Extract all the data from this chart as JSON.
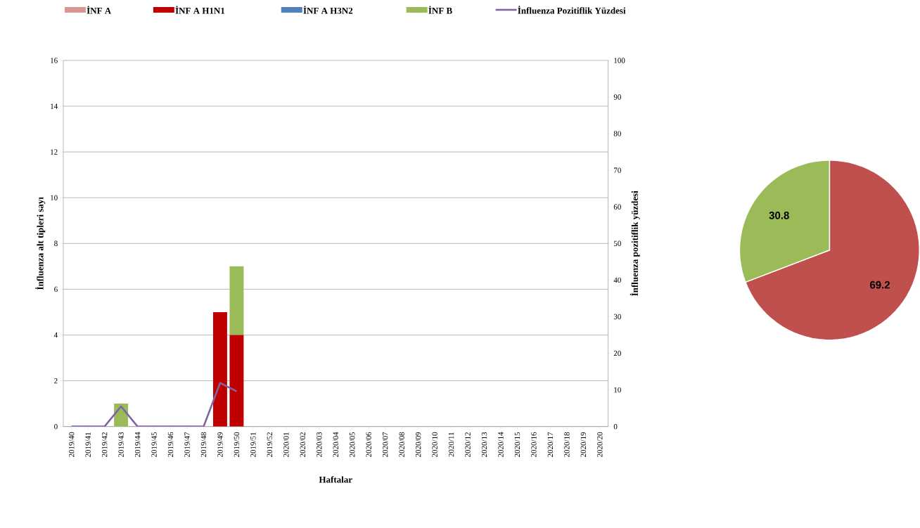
{
  "chart_data": [
    {
      "type": "bar",
      "stacked": true,
      "xlabel": "Haftalar",
      "ylabel": "İnfluenza alt tipleri sayı",
      "y2label": "İnfluenza pozitiflik yüzdesi",
      "legend": "top",
      "grid": "y",
      "categories": [
        "2019/40",
        "2019/41",
        "2019/42",
        "2019/43",
        "2019/44",
        "2019/45",
        "2019/46",
        "2019/47",
        "2019/48",
        "2019/49",
        "2019/50",
        "2019/51",
        "2019/52",
        "2020/01",
        "2020/02",
        "2020/03",
        "2020/04",
        "2020/05",
        "2020/06",
        "2020/07",
        "2020/08",
        "2020/09",
        "2020/10",
        "2020/11",
        "2020/12",
        "2020/13",
        "2020/14",
        "2020/15",
        "2020/16",
        "2020/17",
        "2020/18",
        "2020/19",
        "2020/20"
      ],
      "ylim": [
        0,
        16
      ],
      "yticks": [
        0,
        2,
        4,
        6,
        8,
        10,
        12,
        14,
        16
      ],
      "y2lim": [
        0,
        100
      ],
      "y2ticks": [
        0,
        10,
        20,
        30,
        40,
        50,
        60,
        70,
        80,
        90,
        100
      ],
      "series": [
        {
          "name": "İNF A",
          "color": "#d99694",
          "values": [
            0,
            0,
            0,
            0,
            0,
            0,
            0,
            0,
            0,
            0,
            0,
            0,
            0,
            0,
            0,
            0,
            0,
            0,
            0,
            0,
            0,
            0,
            0,
            0,
            0,
            0,
            0,
            0,
            0,
            0,
            0,
            0,
            0
          ]
        },
        {
          "name": "İNF A H1N1",
          "color": "#c00000",
          "values": [
            0,
            0,
            0,
            0,
            0,
            0,
            0,
            0,
            0,
            5,
            4,
            0,
            0,
            0,
            0,
            0,
            0,
            0,
            0,
            0,
            0,
            0,
            0,
            0,
            0,
            0,
            0,
            0,
            0,
            0,
            0,
            0,
            0
          ]
        },
        {
          "name": "İNF A H3N2",
          "color": "#4f81bd",
          "values": [
            0,
            0,
            0,
            0,
            0,
            0,
            0,
            0,
            0,
            0,
            0,
            0,
            0,
            0,
            0,
            0,
            0,
            0,
            0,
            0,
            0,
            0,
            0,
            0,
            0,
            0,
            0,
            0,
            0,
            0,
            0,
            0,
            0
          ]
        },
        {
          "name": "İNF B",
          "color": "#9bbb59",
          "values": [
            0,
            0,
            0,
            1,
            0,
            0,
            0,
            0,
            0,
            0,
            3,
            0,
            0,
            0,
            0,
            0,
            0,
            0,
            0,
            0,
            0,
            0,
            0,
            0,
            0,
            0,
            0,
            0,
            0,
            0,
            0,
            0,
            0
          ]
        },
        {
          "name": "İnfluenza Pozitiflik Yüzdesi",
          "type": "line",
          "axis": "y2",
          "color": "#8064a2",
          "values": [
            0,
            0,
            0,
            5.5,
            0,
            0,
            0,
            0,
            0,
            11.9,
            9.6,
            null,
            null,
            null,
            null,
            null,
            null,
            null,
            null,
            null,
            null,
            null,
            null,
            null,
            null,
            null,
            null,
            null,
            null,
            null,
            null,
            null,
            null
          ]
        }
      ]
    },
    {
      "type": "pie",
      "categories": [
        null,
        null
      ],
      "values": [
        69.2,
        30.8
      ],
      "colors": [
        "#c0504d",
        "#9bbb59"
      ],
      "data_labels": true
    }
  ]
}
